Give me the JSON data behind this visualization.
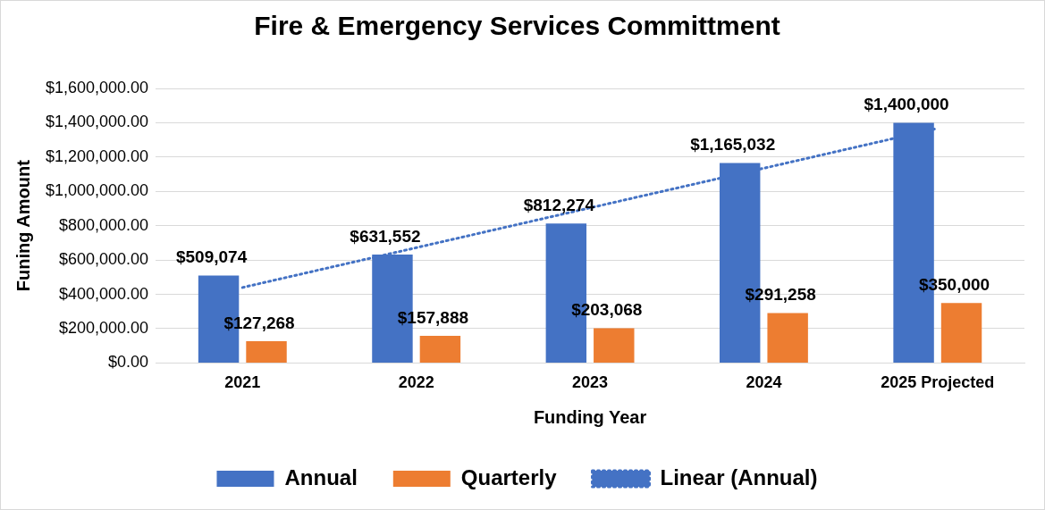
{
  "chart_data": {
    "type": "bar",
    "title": "Fire & Emergency Services Committment",
    "xlabel": "Funding Year",
    "ylabel": "Funing Amount",
    "categories": [
      "2021",
      "2022",
      "2023",
      "2024",
      "2025 Projected"
    ],
    "series": [
      {
        "name": "Annual",
        "color": "#4472c4",
        "values": [
          509074,
          631552,
          812274,
          1165032,
          1400000
        ],
        "value_labels": [
          "$509,074",
          "$631,552",
          "$812,274",
          "$1,165,032",
          "$1,400,000"
        ]
      },
      {
        "name": "Quarterly",
        "color": "#ed7d31",
        "values": [
          127268,
          157888,
          203068,
          291258,
          350000
        ],
        "value_labels": [
          "$127,268",
          "$157,888",
          "$203,068",
          "$291,258",
          "$350,000"
        ]
      },
      {
        "name": "Linear (Annual)",
        "type": "line",
        "color": "#4472c4",
        "line_style": "dotted",
        "marker": "none",
        "values": [
          440000,
          672000,
          904000,
          1135000,
          1367000
        ]
      }
    ],
    "ylim": [
      0,
      1600000
    ],
    "yticks": [
      {
        "value": 0,
        "label": "$0.00"
      },
      {
        "value": 200000,
        "label": "$200,000.00"
      },
      {
        "value": 400000,
        "label": "$400,000.00"
      },
      {
        "value": 600000,
        "label": "$600,000.00"
      },
      {
        "value": 800000,
        "label": "$800,000.00"
      },
      {
        "value": 1000000,
        "label": "$1,000,000.00"
      },
      {
        "value": 1200000,
        "label": "$1,200,000.00"
      },
      {
        "value": 1400000,
        "label": "$1,400,000.00"
      },
      {
        "value": 1600000,
        "label": "$1,600,000.00"
      }
    ],
    "grid": "y",
    "legend": "bottom"
  }
}
